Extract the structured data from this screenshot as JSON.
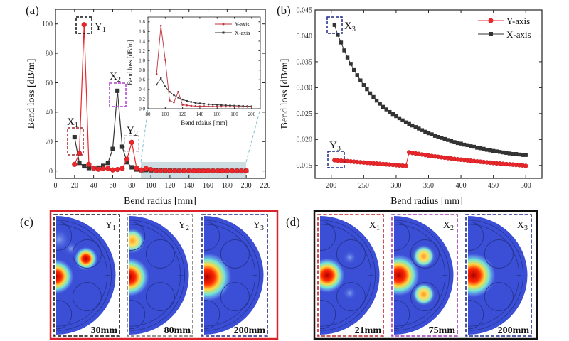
{
  "panels": {
    "a": "(a)",
    "b": "(b)",
    "c": "(c)",
    "d": "(d)"
  },
  "colors": {
    "y_axis_series": "#e8262b",
    "x_axis_series": "#333333",
    "field_background": "#3b4fd6",
    "frame_c": "#d9232a",
    "frame_d": "#111111"
  },
  "annotations_a": {
    "y1": {
      "letter": "Y",
      "sub": "1"
    },
    "x1": {
      "letter": "X",
      "sub": "1"
    },
    "x2": {
      "letter": "X",
      "sub": "2"
    },
    "y2": {
      "letter": "Y",
      "sub": "2"
    }
  },
  "annotations_b": {
    "x3": {
      "letter": "X",
      "sub": "3"
    },
    "y3": {
      "letter": "Y",
      "sub": "3"
    }
  },
  "chart_data": [
    {
      "id": "a",
      "type": "line",
      "xlabel": "Bend radius [mm]",
      "ylabel": "Bend loss [dB/m]",
      "xlim": [
        0,
        220
      ],
      "ylim": [
        -5,
        110
      ],
      "xticks": [
        "0",
        "20",
        "40",
        "60",
        "80",
        "100",
        "120",
        "140",
        "160",
        "180",
        "200",
        "220"
      ],
      "yticks": [
        "0",
        "20",
        "40",
        "60",
        "80",
        "100"
      ],
      "x": [
        20,
        25,
        30,
        35,
        40,
        45,
        50,
        55,
        60,
        65,
        70,
        75,
        80,
        85,
        90,
        95,
        100,
        105,
        110,
        115,
        120,
        125,
        130,
        135,
        140,
        145,
        150,
        155,
        160,
        165,
        170,
        175,
        180,
        185,
        190,
        195,
        200
      ],
      "series": [
        {
          "name": "Y-axis",
          "marker": "circle",
          "values": [
            4.5,
            12,
            99.5,
            4.5,
            2,
            1.2,
            1.5,
            1.8,
            0.7,
            1.0,
            1.8,
            8,
            19.5,
            2,
            0.72,
            1.72,
            1.01,
            0.17,
            0.13,
            0.35,
            0.08,
            0.07,
            0.06,
            0.055,
            0.05,
            0.05,
            0.048,
            0.046,
            0.045,
            0.044,
            0.043,
            0.042,
            0.041,
            0.04,
            0.04,
            0.04,
            0.04
          ]
        },
        {
          "name": "X-axis",
          "marker": "square",
          "values": [
            23,
            5.5,
            3.2,
            2,
            2,
            2.3,
            3.5,
            5.5,
            15,
            54.5,
            16.5,
            6,
            2.5,
            1,
            0.5,
            0.63,
            0.46,
            0.35,
            0.28,
            0.23,
            0.19,
            0.16,
            0.14,
            0.12,
            0.11,
            0.1,
            0.09,
            0.085,
            0.08,
            0.075,
            0.07,
            0.066,
            0.062,
            0.058,
            0.055,
            0.052,
            0.05
          ]
        }
      ],
      "grid": false
    },
    {
      "id": "a-inset",
      "type": "line",
      "xlabel": "Bend rdaius [mm]",
      "ylabel": "Bend loss [dB/m]",
      "xlim": [
        80,
        210
      ],
      "ylim": [
        0,
        1.9
      ],
      "xticks": [
        "80",
        "100",
        "120",
        "140",
        "160",
        "180",
        "200"
      ],
      "yticks": [
        "0.0",
        "0.2",
        "0.4",
        "0.6",
        "0.8",
        "1.0",
        "1.2",
        "1.4",
        "1.6",
        "1.8"
      ],
      "legend": "top-right",
      "x": [
        90,
        95,
        100,
        105,
        110,
        115,
        120,
        125,
        130,
        135,
        140,
        145,
        150,
        155,
        160,
        165,
        170,
        175,
        180,
        185,
        190,
        195,
        200
      ],
      "series": [
        {
          "name": "Y-axis",
          "marker": "circle",
          "values": [
            0.72,
            1.72,
            1.01,
            0.17,
            0.13,
            0.35,
            0.08,
            0.07,
            0.06,
            0.055,
            0.05,
            0.05,
            0.048,
            0.046,
            0.045,
            0.044,
            0.043,
            0.042,
            0.041,
            0.04,
            0.04,
            0.04,
            0.04
          ]
        },
        {
          "name": "X-axis",
          "marker": "square",
          "values": [
            0.5,
            0.63,
            0.46,
            0.35,
            0.28,
            0.23,
            0.19,
            0.16,
            0.14,
            0.12,
            0.11,
            0.1,
            0.09,
            0.085,
            0.08,
            0.075,
            0.07,
            0.066,
            0.062,
            0.058,
            0.055,
            0.052,
            0.05
          ]
        }
      ],
      "grid": false
    },
    {
      "id": "b",
      "type": "line",
      "xlabel": "Bend radius [mm]",
      "ylabel": "Bend loss [dB/m]",
      "xlim": [
        175,
        525
      ],
      "ylim": [
        0.0125,
        0.045
      ],
      "xticks": [
        "200",
        "250",
        "300",
        "350",
        "400",
        "450",
        "500"
      ],
      "yticks": [
        "0.015",
        "0.020",
        "0.025",
        "0.030",
        "0.035",
        "0.040",
        "0.045"
      ],
      "legend": "top-right",
      "x": [
        205,
        210,
        215,
        220,
        225,
        230,
        235,
        240,
        245,
        250,
        255,
        260,
        265,
        270,
        275,
        280,
        285,
        290,
        295,
        300,
        305,
        310,
        315,
        320,
        325,
        330,
        335,
        340,
        345,
        350,
        355,
        360,
        365,
        370,
        375,
        380,
        385,
        390,
        395,
        400,
        405,
        410,
        415,
        420,
        425,
        430,
        435,
        440,
        445,
        450,
        455,
        460,
        465,
        470,
        475,
        480,
        485,
        490,
        495,
        500
      ],
      "series": [
        {
          "name": "Y-axis",
          "marker": "circle",
          "values": [
            0.016,
            0.01595,
            0.0159,
            0.01585,
            0.0158,
            0.01575,
            0.0157,
            0.01565,
            0.0156,
            0.01555,
            0.0155,
            0.01545,
            0.0154,
            0.01535,
            0.0153,
            0.01525,
            0.0152,
            0.01515,
            0.0151,
            0.01505,
            0.015,
            0.01495,
            0.0149,
            0.0175,
            0.0174,
            0.0173,
            0.0172,
            0.0171,
            0.017,
            0.0169,
            0.0168,
            0.01672,
            0.01664,
            0.01656,
            0.01648,
            0.0164,
            0.01632,
            0.01624,
            0.01616,
            0.0161,
            0.01603,
            0.01596,
            0.0159,
            0.01583,
            0.01576,
            0.0157,
            0.01564,
            0.01558,
            0.01552,
            0.01546,
            0.0154,
            0.01535,
            0.0153,
            0.01524,
            0.0152,
            0.01515,
            0.0151,
            0.01505,
            0.015,
            0.0149
          ]
        },
        {
          "name": "X-axis",
          "marker": "square",
          "values": [
            0.0421,
            0.0402,
            0.0387,
            0.0372,
            0.0358,
            0.0346,
            0.0334,
            0.0324,
            0.0314,
            0.0305,
            0.0297,
            0.0289,
            0.0282,
            0.0275,
            0.0269,
            0.0263,
            0.0258,
            0.0253,
            0.0249,
            0.0245,
            0.0241,
            0.0237,
            0.0233,
            0.023,
            0.0227,
            0.0224,
            0.0221,
            0.0218,
            0.0215,
            0.0212,
            0.021,
            0.0207,
            0.0205,
            0.0203,
            0.0201,
            0.0199,
            0.0197,
            0.0195,
            0.0193,
            0.0192,
            0.019,
            0.0189,
            0.0187,
            0.0186,
            0.0184,
            0.0183,
            0.0182,
            0.018,
            0.0179,
            0.0178,
            0.0177,
            0.0176,
            0.0175,
            0.0174,
            0.0173,
            0.0172,
            0.0172,
            0.0171,
            0.017,
            0.017
          ]
        }
      ],
      "grid": false
    }
  ],
  "mode_fields": {
    "c": [
      {
        "letter": "Y",
        "sub": "1",
        "radius": "30mm",
        "border": "#111111"
      },
      {
        "letter": "Y",
        "sub": "2",
        "radius": "80mm",
        "border": "#777777"
      },
      {
        "letter": "Y",
        "sub": "3",
        "radius": "200mm",
        "border": "#1f2a8a"
      }
    ],
    "d": [
      {
        "letter": "X",
        "sub": "1",
        "radius": "21mm",
        "border": "#c0262c"
      },
      {
        "letter": "X",
        "sub": "2",
        "radius": "75mm",
        "border": "#a23bb8"
      },
      {
        "letter": "X",
        "sub": "3",
        "radius": "200mm",
        "border": "#1f2a8a"
      }
    ]
  }
}
